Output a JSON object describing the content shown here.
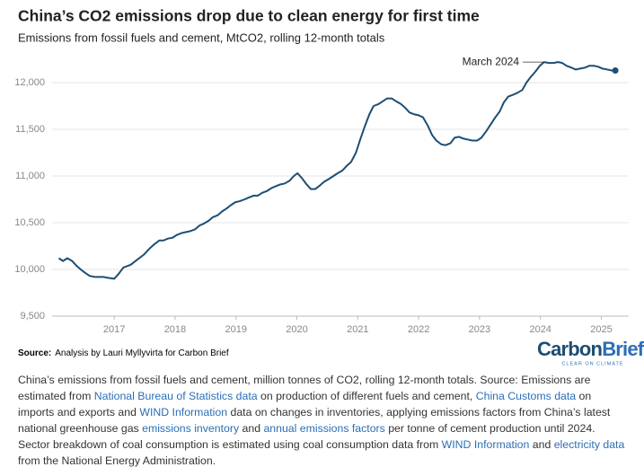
{
  "chart_data": {
    "type": "line",
    "title": "China’s CO2 emissions drop due to clean energy for first time",
    "subtitle": "Emissions from fossil fuels and cement, MtCO2, rolling 12-month totals",
    "x": [
      2016.09,
      2016.16,
      2016.23,
      2016.31,
      2016.38,
      2016.45,
      2016.53,
      2016.6,
      2016.68,
      2016.82,
      2016.9,
      2017.0,
      2017.07,
      2017.15,
      2017.27,
      2017.37,
      2017.49,
      2017.59,
      2017.66,
      2017.74,
      2017.81,
      2017.88,
      2017.96,
      2018.03,
      2018.11,
      2018.18,
      2018.25,
      2018.33,
      2018.4,
      2018.47,
      2018.55,
      2018.62,
      2018.7,
      2018.77,
      2018.84,
      2018.92,
      2018.99,
      2019.06,
      2019.14,
      2019.21,
      2019.29,
      2019.36,
      2019.43,
      2019.51,
      2019.58,
      2019.65,
      2019.73,
      2019.8,
      2019.88,
      2019.95,
      2020.01,
      2020.08,
      2020.16,
      2020.23,
      2020.3,
      2020.38,
      2020.45,
      2020.53,
      2020.6,
      2020.67,
      2020.75,
      2020.82,
      2020.89,
      2020.97,
      2021.04,
      2021.12,
      2021.19,
      2021.26,
      2021.34,
      2021.41,
      2021.48,
      2021.56,
      2021.63,
      2021.71,
      2021.78,
      2021.85,
      2021.93,
      2022.0,
      2022.07,
      2022.15,
      2022.22,
      2022.29,
      2022.37,
      2022.44,
      2022.52,
      2022.59,
      2022.66,
      2022.74,
      2022.81,
      2022.88,
      2022.96,
      2023.03,
      2023.11,
      2023.18,
      2023.25,
      2023.33,
      2023.4,
      2023.47,
      2023.55,
      2023.62,
      2023.7,
      2023.77,
      2023.84,
      2023.92,
      2023.99,
      2024.06,
      2024.14,
      2024.21,
      2024.29,
      2024.36,
      2024.43,
      2024.51,
      2024.58,
      2024.65,
      2024.73,
      2024.8,
      2024.88,
      2024.95,
      2025.02,
      2025.1,
      2025.17,
      2025.23
    ],
    "values": [
      10120,
      10090,
      10120,
      10090,
      10040,
      10000,
      9960,
      9930,
      9920,
      9920,
      9910,
      9900,
      9950,
      10020,
      10050,
      10100,
      10160,
      10230,
      10270,
      10310,
      10310,
      10330,
      10340,
      10370,
      10390,
      10400,
      10410,
      10430,
      10470,
      10490,
      10520,
      10560,
      10580,
      10620,
      10650,
      10690,
      10720,
      10730,
      10750,
      10770,
      10790,
      10790,
      10820,
      10840,
      10870,
      10890,
      10910,
      10920,
      10950,
      11000,
      11030,
      10980,
      10910,
      10860,
      10860,
      10900,
      10940,
      10970,
      11000,
      11030,
      11060,
      11110,
      11150,
      11250,
      11390,
      11540,
      11660,
      11750,
      11770,
      11800,
      11830,
      11830,
      11800,
      11770,
      11730,
      11680,
      11660,
      11650,
      11630,
      11540,
      11440,
      11380,
      11340,
      11330,
      11350,
      11410,
      11420,
      11400,
      11390,
      11380,
      11380,
      11410,
      11480,
      11550,
      11620,
      11690,
      11790,
      11850,
      11870,
      11890,
      11920,
      12000,
      12060,
      12120,
      12180,
      12220,
      12210,
      12210,
      12220,
      12210,
      12180,
      12160,
      12140,
      12150,
      12160,
      12180,
      12180,
      12170,
      12150,
      12140,
      12130,
      12130
    ],
    "color": "#1d4e74",
    "xlim": [
      2015.98,
      2025.45
    ],
    "xticks": [
      2017,
      2018,
      2019,
      2020,
      2021,
      2022,
      2023,
      2024,
      2025
    ],
    "ylim": [
      9500,
      12400
    ],
    "yticks": [
      {
        "value": 9500,
        "label": "9,500"
      },
      {
        "value": 10000,
        "label": "10,000"
      },
      {
        "value": 10500,
        "label": "10,500"
      },
      {
        "value": 11000,
        "label": "11,000"
      },
      {
        "value": 11500,
        "label": "11,500"
      },
      {
        "value": 12000,
        "label": "12,000"
      }
    ],
    "grid": true,
    "annotation": "March 2024"
  },
  "source": {
    "label": "Source:",
    "text": "Analysis by Lauri Myllyvirta for Carbon Brief"
  },
  "logo": {
    "part1": "Carbon",
    "part2": "Brief",
    "tagline": "CLEAR ON CLIMATE"
  },
  "caption": [
    {
      "text": "China’s emissions from fossil fuels and cement, million tonnes of CO2, rolling 12-month totals. Source: Emissions are estimated from "
    },
    {
      "text": "National Bureau of Statistics data",
      "link": true
    },
    {
      "text": " on production of different fuels and cement, "
    },
    {
      "text": "China Customs data",
      "link": true
    },
    {
      "text": " on imports and exports and "
    },
    {
      "text": "WIND Information",
      "link": true
    },
    {
      "text": " data on changes in inventories, applying emissions factors from China’s latest national greenhouse gas "
    },
    {
      "text": "emissions inventory",
      "link": true
    },
    {
      "text": " and "
    },
    {
      "text": "annual emissions factors",
      "link": true
    },
    {
      "text": " per tonne of cement production until 2024. Sector breakdown of coal consumption is estimated using coal consumption data from "
    },
    {
      "text": "WIND Information",
      "link": true
    },
    {
      "text": " and "
    },
    {
      "text": "electricity data",
      "link": true
    },
    {
      "text": " from the National Energy Administration."
    }
  ]
}
